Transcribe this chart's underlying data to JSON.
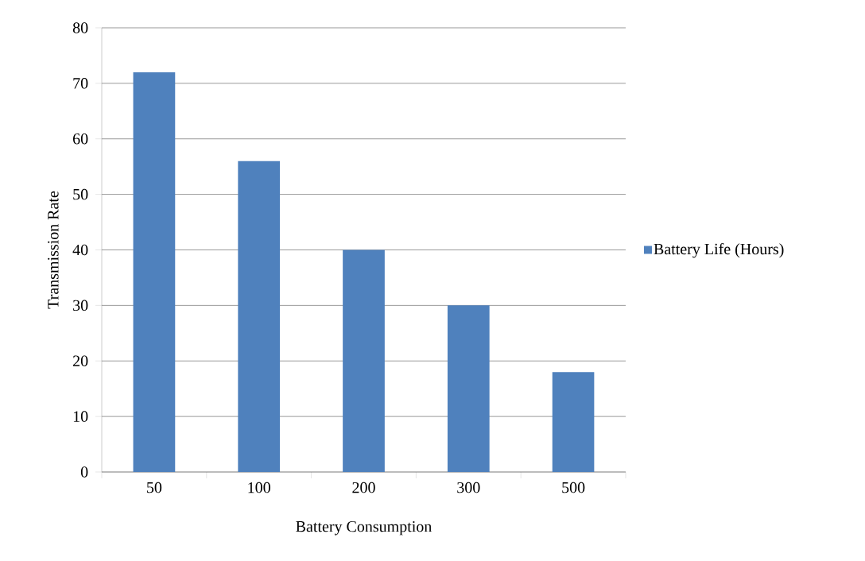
{
  "chart_data": {
    "type": "bar",
    "xlabel": "Battery Consumption",
    "ylabel": "Transmission Rate",
    "categories": [
      "50",
      "100",
      "200",
      "300",
      "500"
    ],
    "series": [
      {
        "name": "Battery Life (Hours)",
        "color": "#4f81bd",
        "values": [
          72,
          56,
          40,
          30,
          18
        ]
      }
    ],
    "ylim": [
      0,
      80
    ],
    "yticks": [
      0,
      10,
      20,
      30,
      40,
      50,
      60,
      70,
      80
    ],
    "grid": "y",
    "legend": "right"
  }
}
